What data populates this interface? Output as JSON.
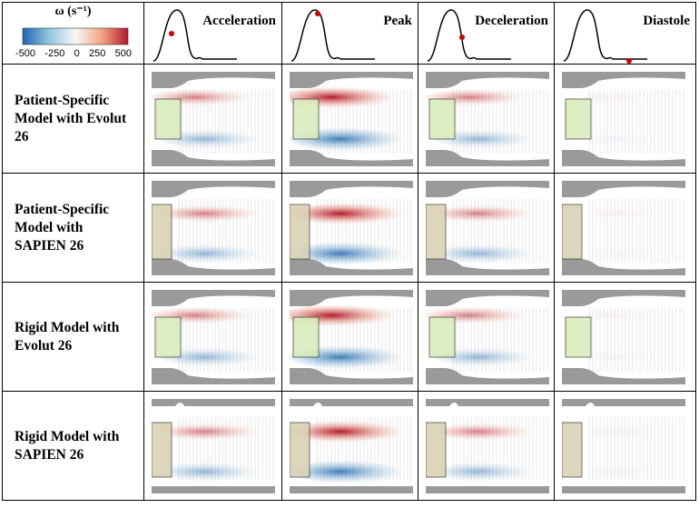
{
  "colorbar": {
    "label": "ω (s⁻¹)",
    "ticks": [
      "-500",
      "-250",
      "0",
      "250",
      "500"
    ]
  },
  "columns": [
    "Acceleration",
    "Peak",
    "Deceleration",
    "Diastole"
  ],
  "rows": [
    "Patient-Specific Model with Evolut 26",
    "Patient-Specific Model with SAPIEN 26",
    "Rigid Model with Evolut 26",
    "Rigid Model with SAPIEN 26"
  ]
}
